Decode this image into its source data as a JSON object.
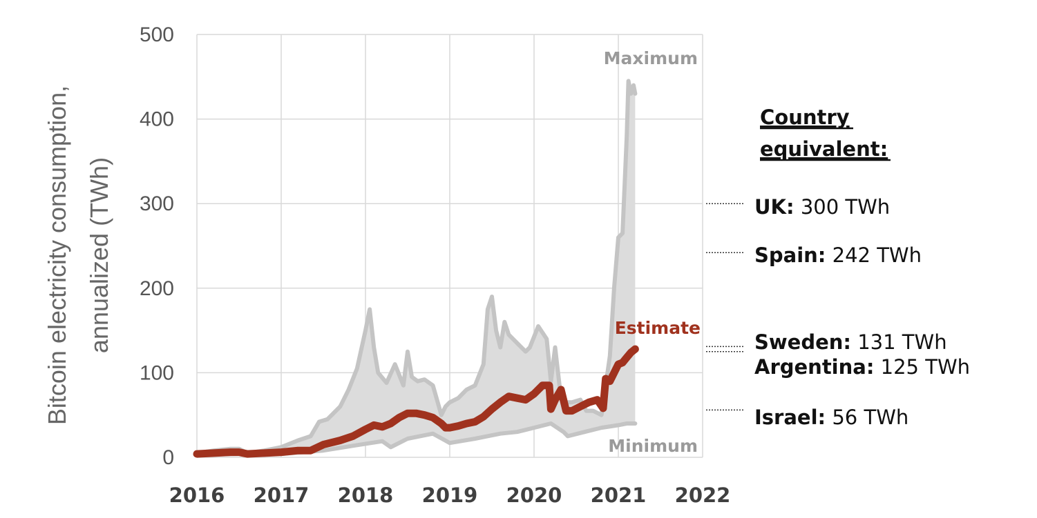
{
  "chart_data": {
    "type": "area",
    "ylabel_lines": [
      "Bitcoin electricity consumption,",
      "annualized (TWh)"
    ],
    "ylim": [
      0,
      500
    ],
    "yticks": [
      0,
      100,
      200,
      300,
      400,
      500
    ],
    "xlim": [
      2016,
      2022
    ],
    "xticks": [
      "2016",
      "2017",
      "2018",
      "2019",
      "2020",
      "2021",
      "2022"
    ],
    "grid": true,
    "annotations": {
      "maximum": "Maximum",
      "minimum": "Minimum",
      "estimate": "Estimate"
    },
    "colors": {
      "estimate": "#a0321e",
      "max_min_line": "#c4c4c4",
      "band_fill": "#dcdcdc",
      "grid": "#d9d9d9"
    },
    "series": [
      {
        "name": "Maximum",
        "x": [
          2016.0,
          2016.2,
          2016.4,
          2016.5,
          2016.6,
          2016.8,
          2017.0,
          2017.2,
          2017.35,
          2017.45,
          2017.55,
          2017.7,
          2017.8,
          2017.9,
          2018.0,
          2018.05,
          2018.1,
          2018.15,
          2018.25,
          2018.35,
          2018.45,
          2018.5,
          2018.55,
          2018.62,
          2018.7,
          2018.8,
          2018.9,
          2018.95,
          2019.0,
          2019.1,
          2019.2,
          2019.3,
          2019.4,
          2019.45,
          2019.5,
          2019.55,
          2019.6,
          2019.65,
          2019.7,
          2019.75,
          2019.8,
          2019.9,
          2019.95,
          2020.05,
          2020.15,
          2020.2,
          2020.25,
          2020.32,
          2020.38,
          2020.45,
          2020.55,
          2020.62,
          2020.7,
          2020.8,
          2020.9,
          2020.95,
          2021.0,
          2021.05,
          2021.1,
          2021.12,
          2021.15,
          2021.18,
          2021.2
        ],
        "values": [
          5,
          8,
          10,
          10,
          5,
          8,
          12,
          20,
          25,
          42,
          45,
          60,
          80,
          105,
          150,
          175,
          130,
          100,
          88,
          110,
          85,
          125,
          95,
          90,
          92,
          85,
          50,
          60,
          65,
          70,
          80,
          85,
          110,
          175,
          190,
          150,
          130,
          160,
          145,
          140,
          135,
          125,
          130,
          155,
          140,
          90,
          130,
          70,
          65,
          65,
          68,
          55,
          55,
          50,
          120,
          200,
          260,
          265,
          380,
          445,
          430,
          440,
          430
        ]
      },
      {
        "name": "Estimate",
        "x": [
          2016.0,
          2016.2,
          2016.4,
          2016.5,
          2016.6,
          2016.8,
          2017.0,
          2017.2,
          2017.35,
          2017.5,
          2017.7,
          2017.85,
          2018.0,
          2018.1,
          2018.2,
          2018.3,
          2018.4,
          2018.5,
          2018.6,
          2018.7,
          2018.8,
          2018.9,
          2018.95,
          2019.0,
          2019.1,
          2019.2,
          2019.3,
          2019.4,
          2019.5,
          2019.6,
          2019.7,
          2019.8,
          2019.9,
          2020.0,
          2020.1,
          2020.18,
          2020.2,
          2020.25,
          2020.32,
          2020.38,
          2020.45,
          2020.55,
          2020.65,
          2020.75,
          2020.82,
          2020.85,
          2020.9,
          2020.95,
          2021.0,
          2021.05,
          2021.1,
          2021.15,
          2021.2
        ],
        "values": [
          4,
          5,
          6,
          6,
          4,
          5,
          6,
          8,
          8,
          15,
          20,
          25,
          33,
          38,
          36,
          40,
          47,
          52,
          52,
          50,
          47,
          40,
          35,
          35,
          37,
          40,
          42,
          48,
          57,
          65,
          72,
          70,
          68,
          75,
          85,
          85,
          57,
          68,
          80,
          55,
          55,
          60,
          65,
          68,
          58,
          93,
          90,
          100,
          110,
          112,
          118,
          124,
          128
        ]
      },
      {
        "name": "Minimum",
        "x": [
          2016.0,
          2016.5,
          2017.0,
          2017.5,
          2018.0,
          2018.2,
          2018.3,
          2018.5,
          2018.8,
          2019.0,
          2019.3,
          2019.6,
          2019.8,
          2020.0,
          2020.2,
          2020.35,
          2020.4,
          2020.6,
          2020.8,
          2021.0,
          2021.1,
          2021.2
        ],
        "values": [
          3,
          4,
          4,
          8,
          16,
          19,
          12,
          22,
          28,
          17,
          22,
          28,
          30,
          35,
          40,
          30,
          25,
          30,
          35,
          38,
          40,
          40
        ]
      }
    ],
    "country_equivalents": {
      "header_lines": [
        "Country",
        "equivalent:"
      ],
      "items": [
        {
          "country": "UK:",
          "value": "300 TWh",
          "twh": 300
        },
        {
          "country": "Spain:",
          "value": "242 TWh",
          "twh": 242
        },
        {
          "country": "Sweden:",
          "value": "131 TWh",
          "twh": 131
        },
        {
          "country": "Argentina:",
          "value": "125 TWh",
          "twh": 125
        },
        {
          "country": "Israel:",
          "value": "56 TWh",
          "twh": 56
        }
      ]
    }
  }
}
